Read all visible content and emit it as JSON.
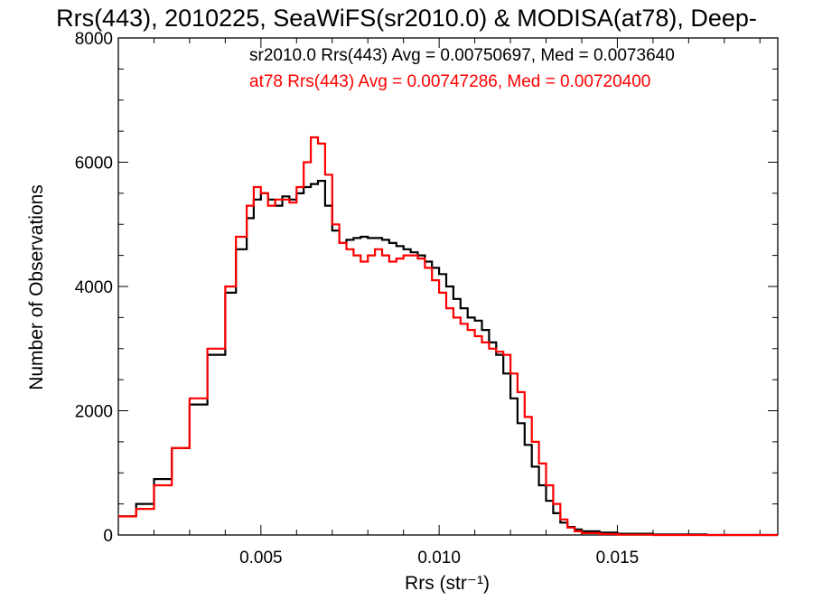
{
  "chart_data": {
    "type": "line",
    "title": "Rrs(443), 2010225, SeaWiFS(sr2010.0) & MODISA(at78), Deep-",
    "xlabel": "Rrs (str⁻¹)",
    "ylabel": "Number of Observations",
    "xlim": [
      0.001,
      0.0195
    ],
    "ylim": [
      0,
      8000
    ],
    "xticks": [
      0.005,
      0.01,
      0.015
    ],
    "xtick_labels": [
      "0.005",
      "0.010",
      "0.015"
    ],
    "yticks": [
      0,
      2000,
      4000,
      6000,
      8000
    ],
    "ytick_labels": [
      "0",
      "2000",
      "4000",
      "6000",
      "8000"
    ],
    "grid": false,
    "legend": "top-right",
    "annotations": [
      {
        "text": "sr2010.0 Rrs(443) Avg = 0.00750697, Med = 0.0073640",
        "color": "#000000"
      },
      {
        "text": "at78 Rrs(443) Avg = 0.00747286, Med = 0.00720400",
        "color": "#ff0000"
      }
    ],
    "series": [
      {
        "name": "sr2010.0",
        "color": "#000000",
        "step": "post",
        "x": [
          0.001,
          0.0015,
          0.002,
          0.0025,
          0.003,
          0.0035,
          0.004,
          0.0043,
          0.0046,
          0.0048,
          0.005,
          0.0052,
          0.0054,
          0.0056,
          0.0058,
          0.006,
          0.0062,
          0.0064,
          0.0066,
          0.0068,
          0.007,
          0.0072,
          0.0074,
          0.0076,
          0.0078,
          0.008,
          0.0082,
          0.0084,
          0.0086,
          0.0088,
          0.009,
          0.0092,
          0.0094,
          0.0096,
          0.0098,
          0.01,
          0.0102,
          0.0104,
          0.0106,
          0.0108,
          0.011,
          0.0112,
          0.0114,
          0.0116,
          0.0118,
          0.012,
          0.0122,
          0.0124,
          0.0126,
          0.0128,
          0.013,
          0.0132,
          0.0134,
          0.0136,
          0.0138,
          0.014,
          0.0145,
          0.015,
          0.016,
          0.0175,
          0.0195
        ],
        "y": [
          300,
          500,
          900,
          1400,
          2100,
          2900,
          3900,
          4600,
          5100,
          5400,
          5500,
          5400,
          5300,
          5450,
          5400,
          5500,
          5600,
          5650,
          5700,
          5300,
          4900,
          4700,
          4750,
          4780,
          4800,
          4780,
          4780,
          4750,
          4700,
          4650,
          4600,
          4550,
          4500,
          4400,
          4300,
          4200,
          4000,
          3800,
          3650,
          3500,
          3450,
          3300,
          3100,
          2900,
          2600,
          2200,
          1800,
          1450,
          1100,
          800,
          550,
          350,
          200,
          130,
          90,
          60,
          40,
          20,
          10,
          0,
          0
        ]
      },
      {
        "name": "at78",
        "color": "#ff0000",
        "step": "post",
        "x": [
          0.001,
          0.0015,
          0.002,
          0.0025,
          0.003,
          0.0035,
          0.004,
          0.0043,
          0.0046,
          0.0048,
          0.005,
          0.0052,
          0.0054,
          0.0056,
          0.0058,
          0.006,
          0.0062,
          0.0064,
          0.0066,
          0.0068,
          0.007,
          0.0072,
          0.0074,
          0.0076,
          0.0078,
          0.008,
          0.0082,
          0.0084,
          0.0086,
          0.0088,
          0.009,
          0.0092,
          0.0094,
          0.0096,
          0.0098,
          0.01,
          0.0102,
          0.0104,
          0.0106,
          0.0108,
          0.011,
          0.0112,
          0.0114,
          0.0116,
          0.0118,
          0.012,
          0.0122,
          0.0124,
          0.0126,
          0.0128,
          0.013,
          0.0132,
          0.0134,
          0.0136,
          0.0138,
          0.014,
          0.0145,
          0.015,
          0.016,
          0.0175,
          0.0195
        ],
        "y": [
          300,
          420,
          800,
          1400,
          2200,
          3000,
          4000,
          4800,
          5300,
          5600,
          5500,
          5300,
          5400,
          5400,
          5350,
          5600,
          6000,
          6400,
          6300,
          5800,
          5000,
          4700,
          4600,
          4500,
          4400,
          4500,
          4600,
          4500,
          4400,
          4450,
          4500,
          4500,
          4450,
          4300,
          4100,
          3900,
          3650,
          3500,
          3400,
          3300,
          3200,
          3100,
          3000,
          2950,
          2900,
          2600,
          2300,
          1900,
          1500,
          1150,
          800,
          500,
          250,
          120,
          60,
          30,
          15,
          5,
          0,
          0,
          0
        ]
      }
    ]
  }
}
